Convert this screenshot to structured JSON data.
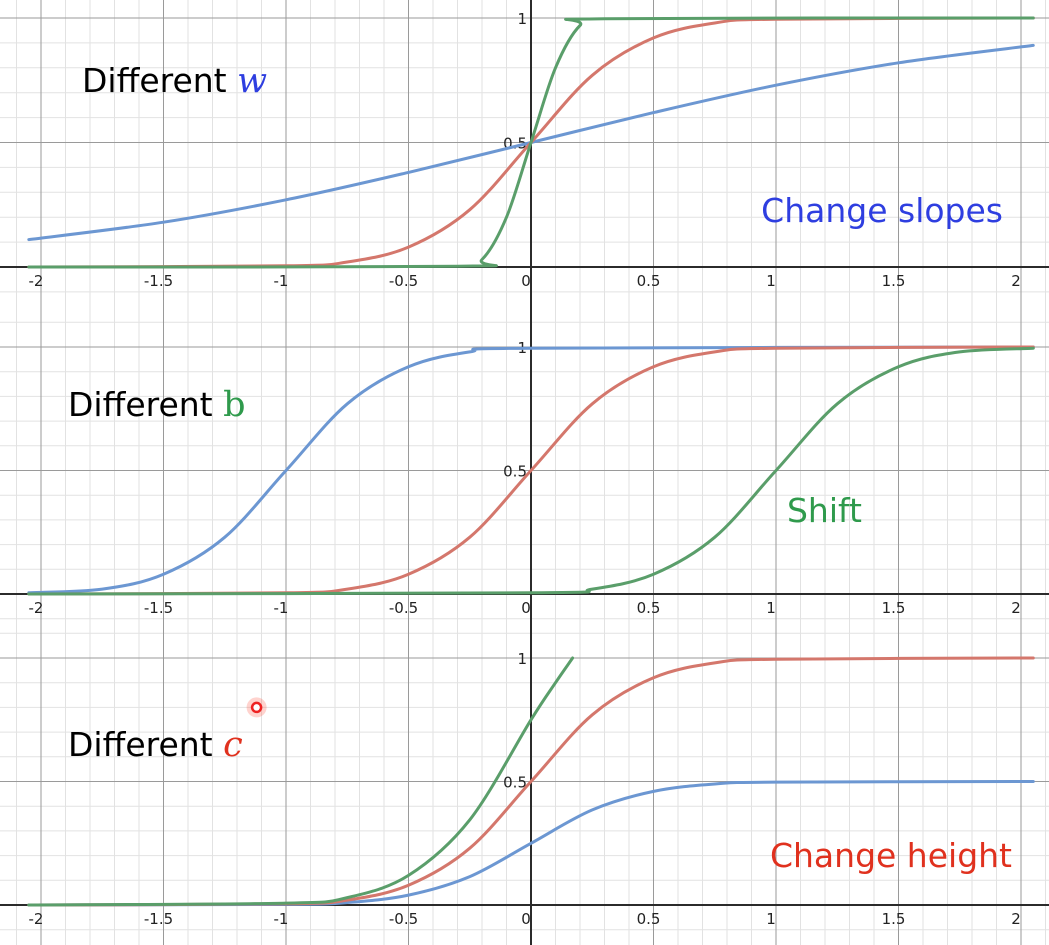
{
  "colors": {
    "blue": "#6c97d2",
    "red": "#d4776c",
    "green": "#5a9e6a",
    "annBlue": "#2e3ee0",
    "annGreen": "#2f9a4c",
    "annRed": "#e0311e",
    "axis": "#2b2b2b",
    "gridMajor": "#9a9a9a",
    "gridMinor": "#e2e2e2"
  },
  "chart_data": [
    {
      "type": "line",
      "title": "",
      "xlim": [
        -2.05,
        2.05
      ],
      "ylim": [
        0,
        1
      ],
      "xticks": [
        -2,
        -1.5,
        -1,
        -0.5,
        0,
        0.5,
        1,
        1.5,
        2
      ],
      "xtick_labels": [
        "-2",
        "-1.5",
        "-1",
        "-0.5",
        "0",
        "0.5",
        "1",
        "1.5",
        "2"
      ],
      "ytick_labels": [
        "0.5",
        "1"
      ],
      "annotation_label": "Different",
      "annotation_var": "w",
      "annotation_var_color": "annBlue",
      "annotation_var_italic": true,
      "note": "Change slopes",
      "note_color": "annBlue",
      "series": [
        {
          "color": "blue",
          "x": [
            -2.05,
            -1.5,
            -1,
            -0.5,
            0,
            0.5,
            1,
            1.5,
            2.05
          ],
          "y": [
            0.11,
            0.18,
            0.27,
            0.38,
            0.5,
            0.62,
            0.73,
            0.82,
            0.89
          ]
        },
        {
          "color": "red",
          "x": [
            -2.05,
            -1,
            -0.75,
            -0.5,
            -0.25,
            0,
            0.25,
            0.5,
            0.75,
            1,
            2.05
          ],
          "y": [
            0.0,
            0.005,
            0.02,
            0.08,
            0.23,
            0.5,
            0.77,
            0.92,
            0.98,
            0.995,
            1.0
          ]
        },
        {
          "color": "green",
          "x": [
            -2.05,
            -0.3,
            -0.2,
            -0.1,
            0,
            0.1,
            0.2,
            0.3,
            2.05
          ],
          "y": [
            0.0,
            0.003,
            0.03,
            0.2,
            0.5,
            0.8,
            0.97,
            0.997,
            1.0
          ]
        }
      ]
    },
    {
      "type": "line",
      "title": "",
      "xlim": [
        -2.05,
        2.05
      ],
      "ylim": [
        0,
        1
      ],
      "xticks": [
        -2,
        -1.5,
        -1,
        -0.5,
        0,
        0.5,
        1,
        1.5,
        2
      ],
      "xtick_labels": [
        "-2",
        "-1.5",
        "-1",
        "-0.5",
        "0",
        "0.5",
        "1",
        "1.5",
        "2"
      ],
      "ytick_labels": [
        "0.5",
        "1"
      ],
      "annotation_label": "Different",
      "annotation_var": "b",
      "annotation_var_color": "annGreen",
      "annotation_var_italic": false,
      "note": "Shift",
      "note_color": "annGreen",
      "series": [
        {
          "color": "blue",
          "x": [
            -2.05,
            -1.75,
            -1.5,
            -1.25,
            -1,
            -0.75,
            -0.5,
            -0.25,
            0,
            2.05
          ],
          "y": [
            0.005,
            0.02,
            0.08,
            0.23,
            0.5,
            0.77,
            0.92,
            0.98,
            0.995,
            1.0
          ]
        },
        {
          "color": "red",
          "x": [
            -2.05,
            -1,
            -0.75,
            -0.5,
            -0.25,
            0,
            0.25,
            0.5,
            0.75,
            1,
            2.05
          ],
          "y": [
            0.0,
            0.005,
            0.02,
            0.08,
            0.23,
            0.5,
            0.77,
            0.92,
            0.98,
            0.995,
            1.0
          ]
        },
        {
          "color": "green",
          "x": [
            -2.05,
            0,
            0.25,
            0.5,
            0.75,
            1,
            1.25,
            1.5,
            1.75,
            2.05
          ],
          "y": [
            0.0,
            0.005,
            0.02,
            0.08,
            0.23,
            0.5,
            0.77,
            0.92,
            0.98,
            0.995
          ]
        }
      ]
    },
    {
      "type": "line",
      "title": "",
      "xlim": [
        -2.05,
        2.05
      ],
      "ylim": [
        0,
        1
      ],
      "xticks": [
        -2,
        -1.5,
        -1,
        -0.5,
        0,
        0.5,
        1,
        1.5,
        2
      ],
      "xtick_labels": [
        "-2",
        "-1.5",
        "-1",
        "-0.5",
        "0",
        "0.5",
        "1",
        "1.5",
        "2"
      ],
      "ytick_labels": [
        "0.5",
        "1"
      ],
      "annotation_label": "Different",
      "annotation_var": "c",
      "annotation_var_color": "annRed",
      "annotation_var_italic": true,
      "note": "Change height",
      "note_color": "annRed",
      "cursor_marker": {
        "x": -1.12,
        "y": 0.8
      },
      "series": [
        {
          "color": "blue",
          "x": [
            -2.05,
            -1,
            -0.75,
            -0.5,
            -0.25,
            0,
            0.25,
            0.5,
            0.75,
            1,
            2.05
          ],
          "y": [
            0.0,
            0.0025,
            0.01,
            0.04,
            0.115,
            0.25,
            0.385,
            0.46,
            0.49,
            0.4975,
            0.5
          ]
        },
        {
          "color": "red",
          "x": [
            -2.05,
            -1,
            -0.75,
            -0.5,
            -0.25,
            0,
            0.25,
            0.5,
            0.75,
            1,
            2.05
          ],
          "y": [
            0.0,
            0.005,
            0.02,
            0.08,
            0.23,
            0.5,
            0.77,
            0.92,
            0.98,
            0.995,
            1.0
          ]
        },
        {
          "color": "green",
          "x": [
            -2.05,
            -1,
            -0.75,
            -0.5,
            -0.25,
            0,
            0.1,
            0.17
          ],
          "y": [
            0.0,
            0.0075,
            0.03,
            0.12,
            0.345,
            0.75,
            0.9,
            1.0
          ]
        }
      ]
    }
  ]
}
